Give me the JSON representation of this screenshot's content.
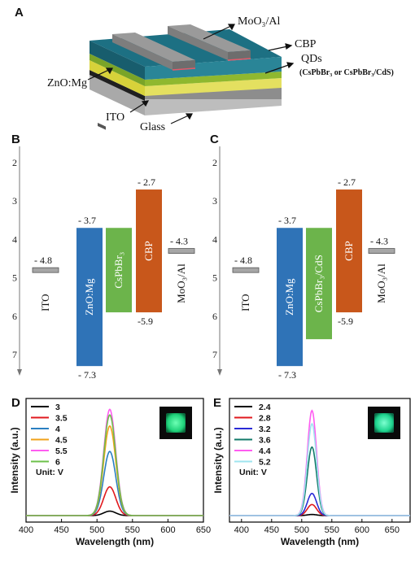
{
  "panel_labels": {
    "a": "A",
    "b": "B",
    "c": "C",
    "d": "D",
    "e": "E"
  },
  "device": {
    "labels": {
      "top": "MoO₃/Al",
      "cbp": "CBP",
      "qds": "QDs",
      "qds_note": "(CsPbBr₃ or CsPbBr₃/CdS)",
      "znomg": "ZnO:Mg",
      "ito": "ITO",
      "glass": "Glass"
    },
    "colors": {
      "cbp": "#1f6f80",
      "qds": "#8fb82f",
      "zno": "#d7d23a",
      "electrode": "#8a8a8a",
      "glass": "#bdbdbd"
    }
  },
  "chart_data": [
    {
      "type": "energy-level",
      "panel": "B",
      "ylim": [
        2,
        7.6
      ],
      "yticks": [
        2,
        3,
        4,
        5,
        6,
        7
      ],
      "levels": [
        {
          "name": "ITO",
          "value": -4.8,
          "value_label": "- 4.8",
          "kind": "line"
        },
        {
          "name": "ZnO:Mg",
          "top": -3.7,
          "bottom": -7.3,
          "top_label": "- 3.7",
          "bottom_label": "- 7.3",
          "color": "#2f73b7",
          "kind": "bar"
        },
        {
          "name": "CsPbBr₃",
          "top": -3.7,
          "bottom": -5.9,
          "color": "#6cb44b",
          "kind": "bar"
        },
        {
          "name": "CBP",
          "top": -2.7,
          "bottom": -5.9,
          "top_label": "- 2.7",
          "bottom_label": "-5.9",
          "color": "#c8571b",
          "kind": "bar"
        },
        {
          "name": "MoO₃/Al",
          "value": -4.3,
          "value_label": "- 4.3",
          "kind": "line"
        }
      ]
    },
    {
      "type": "energy-level",
      "panel": "C",
      "ylim": [
        2,
        7.6
      ],
      "yticks": [
        2,
        3,
        4,
        5,
        6,
        7
      ],
      "levels": [
        {
          "name": "ITO",
          "value": -4.8,
          "value_label": "- 4.8",
          "kind": "line"
        },
        {
          "name": "ZnO:Mg",
          "top": -3.7,
          "bottom": -7.3,
          "top_label": "- 3.7",
          "bottom_label": "- 7.3",
          "color": "#2f73b7",
          "kind": "bar"
        },
        {
          "name": "CsPbBr₃/CdS",
          "top": -3.7,
          "bottom": -6.6,
          "color": "#6cb44b",
          "kind": "bar"
        },
        {
          "name": "CBP",
          "top": -2.7,
          "bottom": -5.9,
          "top_label": "- 2.7",
          "bottom_label": "-5.9",
          "color": "#c8571b",
          "kind": "bar"
        },
        {
          "name": "MoO₃/Al",
          "value": -4.3,
          "value_label": "- 4.3",
          "kind": "line"
        }
      ]
    },
    {
      "type": "line",
      "panel": "D",
      "xlabel": "Wavelength (nm)",
      "ylabel": "Intensity (a.u.)",
      "xlim": [
        400,
        650
      ],
      "xticks": [
        400,
        450,
        500,
        550,
        600,
        650
      ],
      "peak": 518,
      "fwhm": 20,
      "unit_label": "Unit: V",
      "series": [
        {
          "name": "3",
          "peak_value": 0.04,
          "color": "#000000"
        },
        {
          "name": "3.5",
          "peak_value": 0.26,
          "color": "#e0191e"
        },
        {
          "name": "4",
          "peak_value": 0.58,
          "color": "#2a7fc1"
        },
        {
          "name": "4.5",
          "peak_value": 0.81,
          "color": "#f0a21a"
        },
        {
          "name": "5.5",
          "peak_value": 0.96,
          "color": "#ff5cf1"
        },
        {
          "name": "6",
          "peak_value": 0.91,
          "color": "#6cc04a"
        }
      ]
    },
    {
      "type": "line",
      "panel": "E",
      "xlabel": "Wavelength (nm)",
      "ylabel": "Intensity (a.u.)",
      "xlim": [
        380,
        680
      ],
      "xticks": [
        400,
        450,
        500,
        550,
        600,
        650
      ],
      "peak": 517,
      "fwhm": 18,
      "unit_label": "Unit: V",
      "series": [
        {
          "name": "2.4",
          "peak_value": 0.01,
          "color": "#000000"
        },
        {
          "name": "2.8",
          "peak_value": 0.1,
          "color": "#e0191e"
        },
        {
          "name": "3.2",
          "peak_value": 0.2,
          "color": "#2a2ad6"
        },
        {
          "name": "3.6",
          "peak_value": 0.62,
          "color": "#127a6a"
        },
        {
          "name": "4.4",
          "peak_value": 0.95,
          "color": "#ff5cf1"
        },
        {
          "name": "5.2",
          "peak_value": 0.83,
          "color": "#9fe4ef"
        }
      ]
    }
  ]
}
